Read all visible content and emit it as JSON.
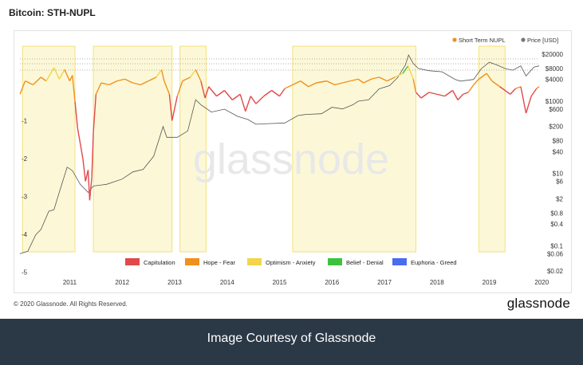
{
  "page": {
    "title": "Bitcoin: STH-NUPL"
  },
  "chart_data": {
    "type": "line",
    "title": "Bitcoin: STH-NUPL",
    "watermark": "glassnode",
    "x_ticks": [
      "2011",
      "2012",
      "2013",
      "2014",
      "2015",
      "2016",
      "2017",
      "2018",
      "2019",
      "2020"
    ],
    "y_left_ticks": [
      "-1",
      "-2",
      "-3",
      "-4",
      "-5"
    ],
    "y_right_ticks": [
      "$20000",
      "$8000",
      "$4000",
      "$1000",
      "$600",
      "$200",
      "$80",
      "$40",
      "$10",
      "$6",
      "$2",
      "$0.8",
      "$0.4",
      "$0.1",
      "$0.06",
      "$0.02"
    ],
    "legend_top": [
      {
        "name": "Short Term NUPL",
        "color": "#f0901e"
      },
      {
        "name": "Price [USD]",
        "color": "#777777"
      }
    ],
    "legend_bottom": [
      {
        "name": "Capitulation",
        "color": "#e04a4a"
      },
      {
        "name": "Hope - Fear",
        "color": "#f0901e"
      },
      {
        "name": "Optimism - Anxiety",
        "color": "#f2d54a"
      },
      {
        "name": "Belief - Denial",
        "color": "#3fc13f"
      },
      {
        "name": "Euphoria - Greed",
        "color": "#4a6cf0"
      }
    ],
    "highlight_periods": [
      {
        "from": 2010.6,
        "to": 2011.6
      },
      {
        "from": 2011.95,
        "to": 2013.45
      },
      {
        "from": 2013.6,
        "to": 2014.1
      },
      {
        "from": 2015.75,
        "to": 2018.1
      },
      {
        "from": 2019.3,
        "to": 2019.8
      }
    ],
    "series": [
      {
        "name": "Short Term NUPL",
        "points": [
          [
            2010.55,
            -0.3
          ],
          [
            2010.65,
            0.05
          ],
          [
            2010.8,
            -0.05
          ],
          [
            2010.95,
            0.15
          ],
          [
            2011.05,
            0.05
          ],
          [
            2011.2,
            0.4
          ],
          [
            2011.3,
            0.1
          ],
          [
            2011.4,
            0.35
          ],
          [
            2011.5,
            0.05
          ],
          [
            2011.55,
            0.2
          ],
          [
            2011.6,
            -0.5
          ],
          [
            2011.65,
            -1.2
          ],
          [
            2011.7,
            -1.6
          ],
          [
            2011.75,
            -2.0
          ],
          [
            2011.8,
            -2.6
          ],
          [
            2011.85,
            -2.3
          ],
          [
            2011.88,
            -3.1
          ],
          [
            2011.92,
            -2.5
          ],
          [
            2011.95,
            -1.3
          ],
          [
            2012.0,
            -0.3
          ],
          [
            2012.1,
            0.0
          ],
          [
            2012.25,
            -0.05
          ],
          [
            2012.4,
            0.05
          ],
          [
            2012.55,
            0.1
          ],
          [
            2012.7,
            0.0
          ],
          [
            2012.85,
            -0.05
          ],
          [
            2013.0,
            0.05
          ],
          [
            2013.15,
            0.15
          ],
          [
            2013.25,
            0.35
          ],
          [
            2013.3,
            0.05
          ],
          [
            2013.4,
            -0.3
          ],
          [
            2013.45,
            -1.0
          ],
          [
            2013.55,
            -0.35
          ],
          [
            2013.65,
            0.05
          ],
          [
            2013.8,
            0.15
          ],
          [
            2013.9,
            0.35
          ],
          [
            2014.0,
            0.05
          ],
          [
            2014.08,
            -0.4
          ],
          [
            2014.15,
            -0.1
          ],
          [
            2014.3,
            -0.35
          ],
          [
            2014.45,
            -0.2
          ],
          [
            2014.6,
            -0.45
          ],
          [
            2014.75,
            -0.3
          ],
          [
            2014.85,
            -0.75
          ],
          [
            2014.95,
            -0.35
          ],
          [
            2015.05,
            -0.55
          ],
          [
            2015.2,
            -0.35
          ],
          [
            2015.35,
            -0.2
          ],
          [
            2015.5,
            -0.35
          ],
          [
            2015.6,
            -0.15
          ],
          [
            2015.75,
            -0.05
          ],
          [
            2015.9,
            0.05
          ],
          [
            2016.05,
            -0.1
          ],
          [
            2016.2,
            0.0
          ],
          [
            2016.4,
            0.05
          ],
          [
            2016.55,
            -0.05
          ],
          [
            2016.7,
            0.0
          ],
          [
            2016.85,
            0.05
          ],
          [
            2017.0,
            0.1
          ],
          [
            2017.1,
            0.0
          ],
          [
            2017.25,
            0.1
          ],
          [
            2017.4,
            0.15
          ],
          [
            2017.55,
            0.05
          ],
          [
            2017.7,
            0.15
          ],
          [
            2017.85,
            0.25
          ],
          [
            2017.95,
            0.45
          ],
          [
            2018.05,
            0.1
          ],
          [
            2018.1,
            -0.25
          ],
          [
            2018.2,
            -0.4
          ],
          [
            2018.35,
            -0.25
          ],
          [
            2018.5,
            -0.3
          ],
          [
            2018.65,
            -0.35
          ],
          [
            2018.8,
            -0.2
          ],
          [
            2018.9,
            -0.45
          ],
          [
            2019.0,
            -0.3
          ],
          [
            2019.1,
            -0.25
          ],
          [
            2019.2,
            -0.05
          ],
          [
            2019.3,
            0.1
          ],
          [
            2019.45,
            0.25
          ],
          [
            2019.55,
            0.05
          ],
          [
            2019.7,
            -0.1
          ],
          [
            2019.8,
            -0.2
          ],
          [
            2019.9,
            -0.3
          ],
          [
            2020.0,
            -0.15
          ],
          [
            2020.1,
            -0.1
          ],
          [
            2020.2,
            -0.8
          ],
          [
            2020.3,
            -0.35
          ],
          [
            2020.4,
            -0.15
          ],
          [
            2020.45,
            -0.1
          ]
        ]
      },
      {
        "name": "Price [USD]",
        "points": [
          [
            2010.55,
            0.06
          ],
          [
            2010.7,
            0.07
          ],
          [
            2010.85,
            0.2
          ],
          [
            2010.95,
            0.28
          ],
          [
            2011.1,
            0.9
          ],
          [
            2011.2,
            1.0
          ],
          [
            2011.3,
            3
          ],
          [
            2011.45,
            15
          ],
          [
            2011.55,
            12
          ],
          [
            2011.7,
            5
          ],
          [
            2011.85,
            3
          ],
          [
            2011.95,
            4.5
          ],
          [
            2012.2,
            5
          ],
          [
            2012.5,
            7
          ],
          [
            2012.7,
            11
          ],
          [
            2012.9,
            13
          ],
          [
            2013.1,
            30
          ],
          [
            2013.28,
            200
          ],
          [
            2013.35,
            100
          ],
          [
            2013.55,
            100
          ],
          [
            2013.75,
            150
          ],
          [
            2013.9,
            1100
          ],
          [
            2014.0,
            800
          ],
          [
            2014.2,
            500
          ],
          [
            2014.45,
            600
          ],
          [
            2014.7,
            380
          ],
          [
            2014.9,
            310
          ],
          [
            2015.05,
            230
          ],
          [
            2015.3,
            240
          ],
          [
            2015.6,
            250
          ],
          [
            2015.85,
            400
          ],
          [
            2016.0,
            430
          ],
          [
            2016.3,
            450
          ],
          [
            2016.5,
            680
          ],
          [
            2016.7,
            610
          ],
          [
            2016.9,
            800
          ],
          [
            2017.0,
            1000
          ],
          [
            2017.2,
            1100
          ],
          [
            2017.4,
            2200
          ],
          [
            2017.6,
            2700
          ],
          [
            2017.75,
            4500
          ],
          [
            2017.9,
            10000
          ],
          [
            2017.96,
            19000
          ],
          [
            2018.05,
            11000
          ],
          [
            2018.15,
            8000
          ],
          [
            2018.35,
            7000
          ],
          [
            2018.6,
            6500
          ],
          [
            2018.85,
            4000
          ],
          [
            2018.95,
            3600
          ],
          [
            2019.2,
            4000
          ],
          [
            2019.35,
            8000
          ],
          [
            2019.5,
            12000
          ],
          [
            2019.65,
            10000
          ],
          [
            2019.8,
            8000
          ],
          [
            2019.95,
            7200
          ],
          [
            2020.1,
            9500
          ],
          [
            2020.2,
            5000
          ],
          [
            2020.35,
            8800
          ],
          [
            2020.45,
            9500
          ]
        ]
      }
    ]
  },
  "footer": {
    "copyright": "© 2020 Glassnode. All Rights Reserved.",
    "brand": "glassnode",
    "caption": "Image Courtesy of Glassnode"
  }
}
